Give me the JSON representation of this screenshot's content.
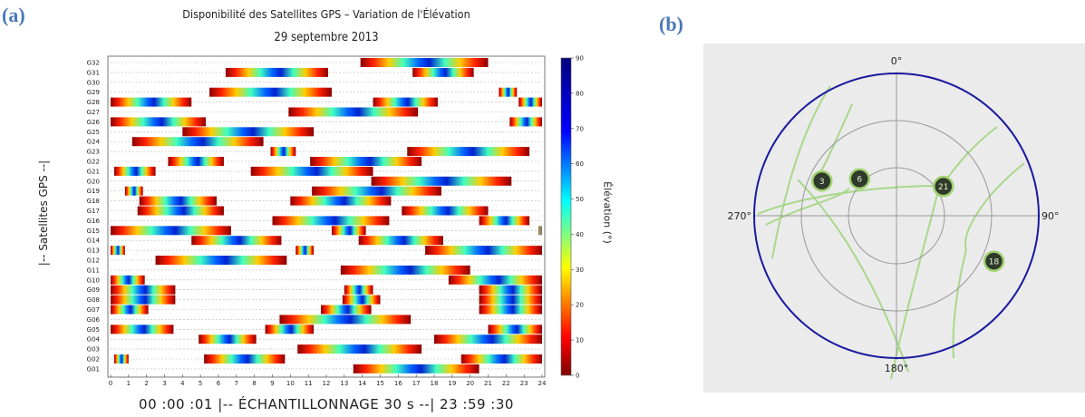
{
  "panel_a_label": "(a)",
  "panel_b_label": "(b)",
  "chart_data": [
    {
      "type": "heatmap",
      "title": "Disponibilité des Satellites GPS – Variation de l'Élévation",
      "subtitle": "29 septembre 2013",
      "ylabel": "|-- Satellites GPS --|",
      "xlabel": "00 :00 :01 |-- ÉCHANTILLONNAGE  30 s --| 23 :59 :30",
      "colorbar_label": "Élévation (°)",
      "colorbar_ticks": [
        "0",
        "10",
        "20",
        "30",
        "40",
        "50",
        "60",
        "70",
        "80",
        "90"
      ],
      "zlim": [
        0,
        90
      ],
      "xlim": [
        0,
        24
      ],
      "x_ticks": [
        "0",
        "1",
        "2",
        "3",
        "4",
        "5",
        "6",
        "7",
        "8",
        "9",
        "10",
        "11",
        "12",
        "13",
        "14",
        "15",
        "16",
        "17",
        "18",
        "19",
        "20",
        "21",
        "22",
        "23",
        "24"
      ],
      "satellites": [
        "G01",
        "G02",
        "G03",
        "G04",
        "G05",
        "G06",
        "G07",
        "G08",
        "G09",
        "G10",
        "G11",
        "G12",
        "G13",
        "G14",
        "G15",
        "G16",
        "G17",
        "G18",
        "G19",
        "G20",
        "G21",
        "G22",
        "G23",
        "G24",
        "G25",
        "G26",
        "G27",
        "G28",
        "G29",
        "G30",
        "G31",
        "G32"
      ],
      "passes": [
        {
          "sat": "G01",
          "start": 13.5,
          "end": 20.5
        },
        {
          "sat": "G02",
          "start": 0.2,
          "end": 1.0
        },
        {
          "sat": "G02",
          "start": 5.2,
          "end": 9.7
        },
        {
          "sat": "G02",
          "start": 19.5,
          "end": 24.0
        },
        {
          "sat": "G03",
          "start": 10.4,
          "end": 17.3
        },
        {
          "sat": "G04",
          "start": 4.9,
          "end": 8.1
        },
        {
          "sat": "G04",
          "start": 18.0,
          "end": 24.0
        },
        {
          "sat": "G05",
          "start": 0.0,
          "end": 3.5
        },
        {
          "sat": "G05",
          "start": 8.6,
          "end": 11.3
        },
        {
          "sat": "G05",
          "start": 21.0,
          "end": 24.0
        },
        {
          "sat": "G06",
          "start": 9.4,
          "end": 16.7
        },
        {
          "sat": "G07",
          "start": 0.0,
          "end": 2.1
        },
        {
          "sat": "G07",
          "start": 11.7,
          "end": 14.5
        },
        {
          "sat": "G07",
          "start": 20.5,
          "end": 24.0
        },
        {
          "sat": "G08",
          "start": 0.0,
          "end": 3.6
        },
        {
          "sat": "G08",
          "start": 12.9,
          "end": 15.0
        },
        {
          "sat": "G08",
          "start": 20.5,
          "end": 24.0
        },
        {
          "sat": "G09",
          "start": 0.0,
          "end": 3.6
        },
        {
          "sat": "G09",
          "start": 13.0,
          "end": 14.6
        },
        {
          "sat": "G09",
          "start": 20.5,
          "end": 24.0
        },
        {
          "sat": "G10",
          "start": 0.0,
          "end": 1.9
        },
        {
          "sat": "G10",
          "start": 18.8,
          "end": 24.0
        },
        {
          "sat": "G11",
          "start": 12.8,
          "end": 20.0
        },
        {
          "sat": "G12",
          "start": 2.5,
          "end": 9.8
        },
        {
          "sat": "G13",
          "start": 0.0,
          "end": 0.8
        },
        {
          "sat": "G13",
          "start": 10.3,
          "end": 11.3
        },
        {
          "sat": "G13",
          "start": 17.5,
          "end": 24.0
        },
        {
          "sat": "G14",
          "start": 4.5,
          "end": 9.5
        },
        {
          "sat": "G14",
          "start": 13.8,
          "end": 18.5
        },
        {
          "sat": "G15",
          "start": 0.0,
          "end": 6.7
        },
        {
          "sat": "G15",
          "start": 12.3,
          "end": 14.2
        },
        {
          "sat": "G15",
          "start": 23.8,
          "end": 24.0
        },
        {
          "sat": "G16",
          "start": 9.0,
          "end": 15.5
        },
        {
          "sat": "G16",
          "start": 20.5,
          "end": 23.3
        },
        {
          "sat": "G17",
          "start": 1.5,
          "end": 6.3
        },
        {
          "sat": "G17",
          "start": 16.2,
          "end": 21.0
        },
        {
          "sat": "G18",
          "start": 1.6,
          "end": 5.9
        },
        {
          "sat": "G18",
          "start": 10.0,
          "end": 15.6
        },
        {
          "sat": "G19",
          "start": 0.8,
          "end": 1.8
        },
        {
          "sat": "G19",
          "start": 11.2,
          "end": 18.4
        },
        {
          "sat": "G20",
          "start": 14.5,
          "end": 22.3
        },
        {
          "sat": "G21",
          "start": 0.2,
          "end": 2.5
        },
        {
          "sat": "G21",
          "start": 7.8,
          "end": 14.6
        },
        {
          "sat": "G22",
          "start": 3.2,
          "end": 6.3
        },
        {
          "sat": "G22",
          "start": 11.1,
          "end": 17.3
        },
        {
          "sat": "G23",
          "start": 8.9,
          "end": 10.3
        },
        {
          "sat": "G23",
          "start": 16.5,
          "end": 23.3
        },
        {
          "sat": "G24",
          "start": 1.2,
          "end": 8.5
        },
        {
          "sat": "G25",
          "start": 4.0,
          "end": 11.3
        },
        {
          "sat": "G26",
          "start": 0.0,
          "end": 5.3
        },
        {
          "sat": "G26",
          "start": 22.2,
          "end": 24.0
        },
        {
          "sat": "G27",
          "start": 9.9,
          "end": 17.1
        },
        {
          "sat": "G28",
          "start": 0.0,
          "end": 4.5
        },
        {
          "sat": "G28",
          "start": 14.6,
          "end": 18.2
        },
        {
          "sat": "G28",
          "start": 22.7,
          "end": 24.0
        },
        {
          "sat": "G29",
          "start": 5.5,
          "end": 12.3
        },
        {
          "sat": "G29",
          "start": 21.6,
          "end": 22.6
        },
        {
          "sat": "G31",
          "start": 6.4,
          "end": 12.1
        },
        {
          "sat": "G31",
          "start": 16.8,
          "end": 20.2
        },
        {
          "sat": "G32",
          "start": 13.9,
          "end": 21.0
        }
      ]
    },
    {
      "type": "polar-skyplot",
      "direction_labels": [
        "0°",
        "90°",
        "180°",
        "270°"
      ],
      "satellites": [
        {
          "id": "3",
          "azimuth": 295,
          "elevation": 38
        },
        {
          "id": "6",
          "azimuth": 315,
          "elevation": 57
        },
        {
          "id": "21",
          "azimuth": 58,
          "elevation": 55
        },
        {
          "id": "18",
          "azimuth": 115,
          "elevation": 22
        }
      ]
    }
  ]
}
